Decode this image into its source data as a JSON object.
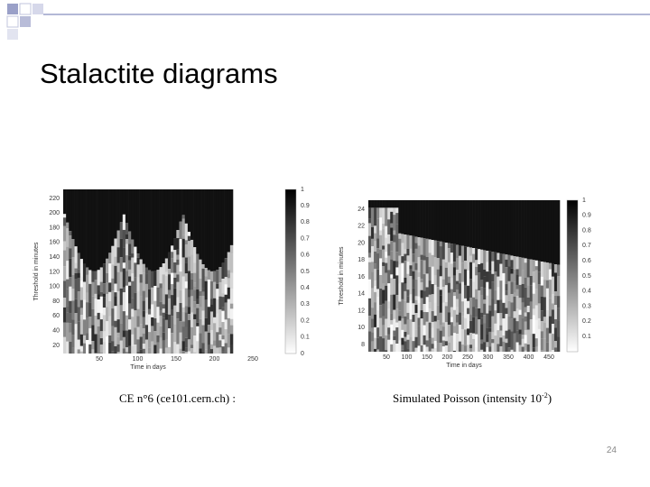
{
  "title": "Stalactite diagrams",
  "figures": [
    {
      "y_label": "Threshold in minutes",
      "x_label": "Time in days",
      "y_ticks": [
        "220",
        "200",
        "180",
        "160",
        "140",
        "120",
        "100",
        "80",
        "60",
        "40",
        "20"
      ],
      "x_ticks": [
        "50",
        "100",
        "150",
        "200",
        "250"
      ],
      "colorbar_ticks": [
        "1",
        "0.9",
        "0.8",
        "0.7",
        "0.6",
        "0.5",
        "0.4",
        "0.3",
        "0.2",
        "0.1",
        "0"
      ],
      "caption": [
        "CE n°6 (ce101.cern.ch) :"
      ]
    },
    {
      "y_label": "Threshold in minutes",
      "x_label": "Time in days",
      "y_ticks": [
        "24",
        "22",
        "20",
        "18",
        "16",
        "14",
        "12",
        "10",
        "8"
      ],
      "x_ticks": [
        "50",
        "100",
        "150",
        "200",
        "250",
        "300",
        "350",
        "400",
        "450"
      ],
      "colorbar_ticks": [
        "1",
        "0.9",
        "0.8",
        "0.7",
        "0.6",
        "0.5",
        "0.4",
        "0.3",
        "0.2",
        "0.1"
      ],
      "caption": [
        "Simulated Poisson (intensity 10",
        "-2",
        ")"
      ]
    }
  ],
  "page_number": "24"
}
